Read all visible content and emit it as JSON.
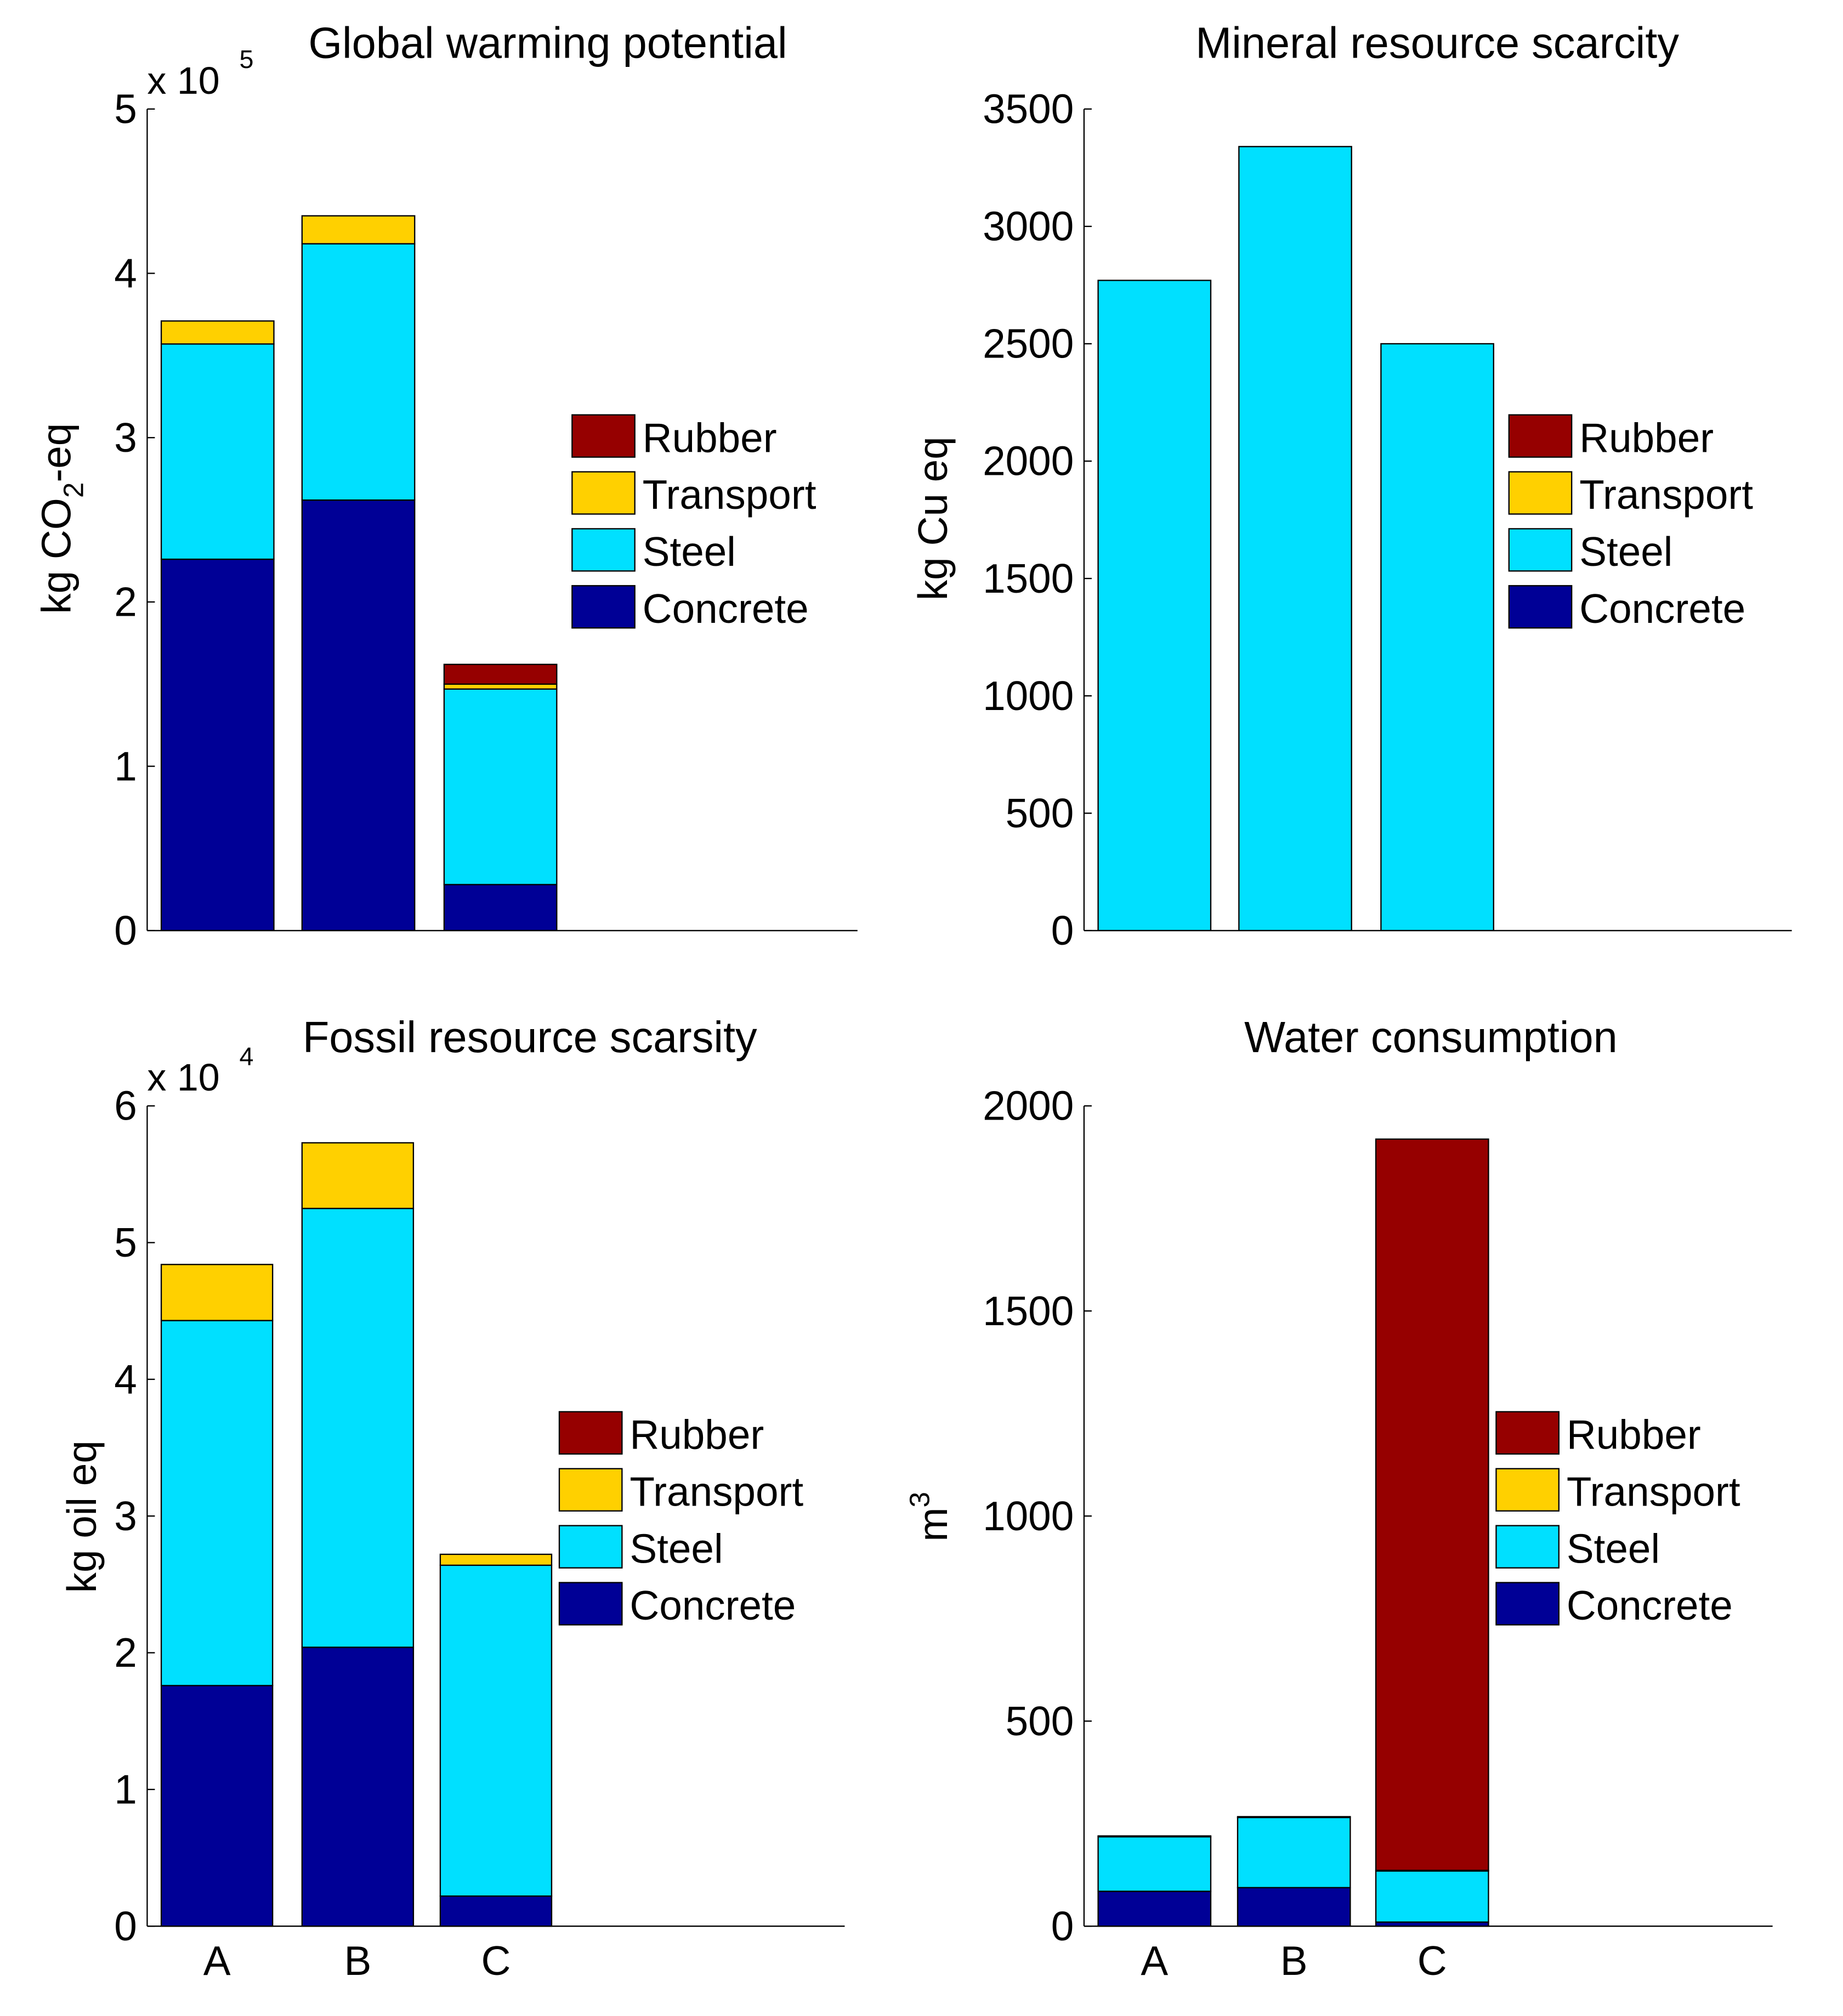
{
  "colors": {
    "Rubber": "#960000",
    "Transport": "#ffd000",
    "Steel": "#00e0ff",
    "Concrete": "#000096"
  },
  "chart_data": [
    {
      "type": "bar",
      "stacked": true,
      "title": "Global warming potential",
      "ylabel": "kg CO",
      "ylabel_sub": "2",
      "ylabel_suffix": "-eq",
      "exponent_label": "x 10",
      "exponent": "5",
      "ylim": [
        0,
        5
      ],
      "yticks": [
        "0",
        "1",
        "2",
        "3",
        "4",
        "5"
      ],
      "categories": [
        "A",
        "B",
        "C"
      ],
      "show_categories": false,
      "legend": [
        "Rubber",
        "Transport",
        "Steel",
        "Concrete"
      ],
      "legend_placement": "right",
      "series": [
        {
          "name": "Concrete",
          "values": [
            2.26,
            2.62,
            0.28
          ]
        },
        {
          "name": "Steel",
          "values": [
            1.31,
            1.56,
            1.19
          ]
        },
        {
          "name": "Transport",
          "values": [
            0.14,
            0.17,
            0.03
          ]
        },
        {
          "name": "Rubber",
          "values": [
            0,
            0,
            0.12
          ]
        }
      ]
    },
    {
      "type": "bar",
      "stacked": true,
      "title": "Mineral resource scarcity",
      "ylabel": "kg Cu eq",
      "ylabel_sub": "",
      "ylabel_suffix": "",
      "exponent_label": "",
      "exponent": "",
      "ylim": [
        0,
        3500
      ],
      "yticks": [
        "0",
        "500",
        "1000",
        "1500",
        "2000",
        "2500",
        "3000",
        "3500"
      ],
      "categories": [
        "A",
        "B",
        "C"
      ],
      "show_categories": false,
      "legend": [
        "Rubber",
        "Transport",
        "Steel",
        "Concrete"
      ],
      "legend_placement": "right",
      "series": [
        {
          "name": "Concrete",
          "values": [
            0,
            0,
            0
          ]
        },
        {
          "name": "Steel",
          "values": [
            2770,
            3340,
            2500
          ]
        },
        {
          "name": "Transport",
          "values": [
            0,
            0,
            0
          ]
        },
        {
          "name": "Rubber",
          "values": [
            0,
            0,
            0
          ]
        }
      ]
    },
    {
      "type": "bar",
      "stacked": true,
      "title": "Fossil resource scarsity",
      "ylabel": "kg oil eq",
      "ylabel_sub": "",
      "ylabel_suffix": "",
      "exponent_label": "x 10",
      "exponent": "4",
      "ylim": [
        0,
        6
      ],
      "yticks": [
        "0",
        "1",
        "2",
        "3",
        "4",
        "5",
        "6"
      ],
      "categories": [
        "A",
        "B",
        "C"
      ],
      "show_categories": true,
      "legend": [
        "Rubber",
        "Transport",
        "Steel",
        "Concrete"
      ],
      "legend_placement": "right",
      "series": [
        {
          "name": "Concrete",
          "values": [
            1.76,
            2.04,
            0.22
          ]
        },
        {
          "name": "Steel",
          "values": [
            2.67,
            3.21,
            2.42
          ]
        },
        {
          "name": "Transport",
          "values": [
            0.41,
            0.48,
            0.08
          ]
        },
        {
          "name": "Rubber",
          "values": [
            0,
            0,
            0
          ]
        }
      ]
    },
    {
      "type": "bar",
      "stacked": true,
      "title": "Water consumption",
      "ylabel": "m",
      "ylabel_sup": "3",
      "ylabel_sub": "",
      "ylabel_suffix": "",
      "exponent_label": "",
      "exponent": "",
      "ylim": [
        0,
        2000
      ],
      "yticks": [
        "0",
        "500",
        "1000",
        "1500",
        "2000"
      ],
      "categories": [
        "A",
        "B",
        "C"
      ],
      "show_categories": true,
      "legend": [
        "Rubber",
        "Transport",
        "Steel",
        "Concrete"
      ],
      "legend_placement": "right",
      "series": [
        {
          "name": "Concrete",
          "values": [
            85,
            94,
            10
          ]
        },
        {
          "name": "Steel",
          "values": [
            133,
            171,
            125
          ]
        },
        {
          "name": "Transport",
          "values": [
            2,
            2,
            1
          ]
        },
        {
          "name": "Rubber",
          "values": [
            0,
            0,
            1783
          ]
        }
      ]
    }
  ]
}
